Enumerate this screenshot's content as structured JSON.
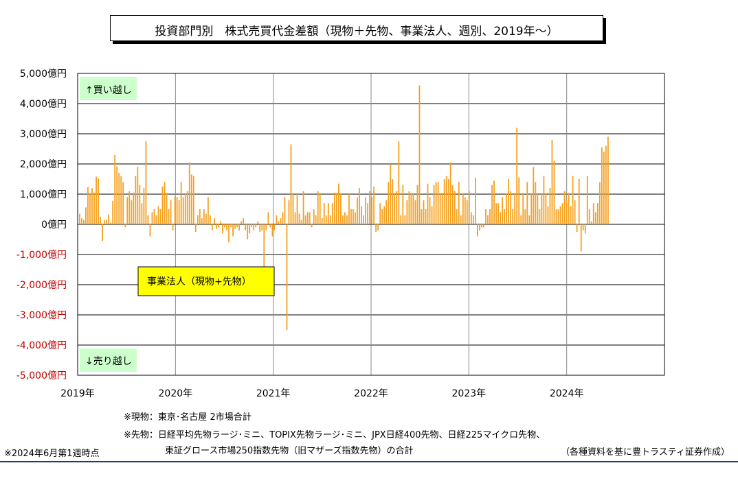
{
  "title": "投資部門別　株式売買代金差額（現物＋先物、事業法人、週別、2019年～）",
  "labels": {
    "buy": "↑買い越し",
    "sell": "↓売り越し",
    "series": "事業法人（現物+先物）"
  },
  "notes": {
    "spot": "※現物：東京･名古屋 2市場合計",
    "futures_line1": "※先物：日経平均先物ラージ･ミニ、TOPIX先物ラージ･ミニ、JPX日経400先物、日経225マイクロ先物、",
    "futures_line2": "東証グロース市場250指数先物（旧マザーズ指数先物）の合計",
    "asof": "※2024年6月第1週時点",
    "source": "（各種資料を基に豊トラスティ証券作成）"
  },
  "colors": {
    "bar": "#f5a01e",
    "negative_tick": "#c00000",
    "label_bg": "#ccffcc",
    "series_bg": "#ffff00"
  },
  "chart_data": {
    "type": "bar",
    "ylim": [
      -5000,
      5000
    ],
    "yticks": [
      {
        "value": 5000,
        "label": "5,000億円"
      },
      {
        "value": 4000,
        "label": "4,000億円"
      },
      {
        "value": 3000,
        "label": "3,000億円"
      },
      {
        "value": 2000,
        "label": "2,000億円"
      },
      {
        "value": 1000,
        "label": "1,000億円"
      },
      {
        "value": 0,
        "label": "0億円"
      },
      {
        "value": -1000,
        "label": "-1,000億円"
      },
      {
        "value": -2000,
        "label": "-2,000億円"
      },
      {
        "value": -3000,
        "label": "-3,000億円"
      },
      {
        "value": -4000,
        "label": "-4,000億円"
      },
      {
        "value": -5000,
        "label": "-5,000億円"
      }
    ],
    "xticks": [
      "2019年",
      "2020年",
      "2021年",
      "2022年",
      "2023年",
      "2024年"
    ],
    "grid": true,
    "legend": "none",
    "series": [
      {
        "values": [
          350,
          200,
          150,
          560,
          1230,
          1000,
          1200,
          1050,
          1580,
          1520,
          250,
          -550,
          130,
          150,
          320,
          60,
          780,
          2300,
          1920,
          1700,
          1600,
          1400,
          -100,
          900,
          1100,
          800,
          1050,
          1600,
          1900,
          1300,
          700,
          1200,
          2750,
          300,
          -400,
          400,
          500,
          300,
          600,
          500,
          1250,
          1400,
          1000,
          500,
          800,
          -200,
          900,
          900,
          800,
          1400,
          900,
          1000,
          1100,
          2060,
          1650,
          1600,
          -250,
          300,
          500,
          200,
          500,
          350,
          900,
          300,
          -200,
          200,
          -150,
          -100,
          100,
          -300,
          -100,
          -200,
          -600,
          -100,
          -400,
          -150,
          -100,
          -200,
          100,
          200,
          -200,
          -500,
          -300,
          -100,
          -200,
          -100,
          100,
          -250,
          -200,
          -1400,
          -200,
          400,
          -100,
          -400,
          -200,
          300,
          100,
          200,
          400,
          900,
          -3500,
          800,
          2650,
          1000,
          400,
          1000,
          350,
          150,
          1100,
          300,
          400,
          400,
          -100,
          500,
          300,
          1100,
          1000,
          200,
          700,
          300,
          700,
          300,
          700,
          1050,
          1000,
          1350,
          1000,
          300,
          400,
          300,
          1000,
          500,
          500,
          400,
          900,
          1200,
          600,
          300,
          900,
          700,
          1100,
          900,
          1250,
          -250,
          -200,
          700,
          500,
          600,
          800,
          1400,
          2000,
          1500,
          1000,
          1100,
          2750,
          300,
          1300,
          300,
          800,
          1100,
          1000,
          1000,
          800,
          1300,
          4600,
          500,
          800,
          500,
          1350,
          900,
          600,
          1300,
          1400,
          1400,
          1000,
          1000,
          1500,
          1600,
          1500,
          2050,
          1300,
          1100,
          500,
          1400,
          300,
          1000,
          900,
          800,
          1100,
          400,
          300,
          1550,
          -400,
          -200,
          -100,
          -100,
          500,
          300,
          500,
          1300,
          1450,
          700,
          700,
          400,
          900,
          500,
          1000,
          1500,
          1100,
          500,
          1000,
          3200,
          1550,
          300,
          1000,
          500,
          1400,
          300,
          1000,
          1900,
          1400,
          1000,
          500,
          1000,
          1600,
          1000,
          600,
          1200,
          2800,
          2100,
          500,
          500,
          600,
          700,
          1100,
          800,
          1000,
          600,
          1600,
          800,
          -250,
          1500,
          -900,
          -200,
          -300,
          1600,
          500,
          100,
          700,
          400,
          700,
          1400,
          2550,
          2400,
          2600,
          2900
        ]
      }
    ]
  }
}
